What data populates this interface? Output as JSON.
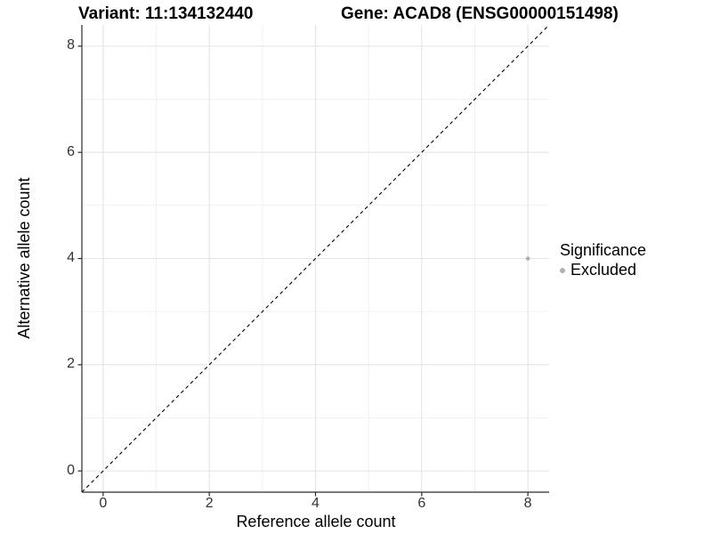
{
  "chart_data": {
    "type": "scatter",
    "title_left": "Variant: 11:134132440",
    "title_right": "Gene: ACAD8 (ENSG00000151498)",
    "xlabel": "Reference allele count",
    "ylabel": "Alternative allele count",
    "xlim": [
      -0.4,
      8.4
    ],
    "ylim": [
      -0.4,
      8.4
    ],
    "x_ticks": [
      0,
      2,
      4,
      6,
      8
    ],
    "y_ticks": [
      0,
      2,
      4,
      6,
      8
    ],
    "x_minor": [
      1,
      3,
      5,
      7
    ],
    "y_minor": [
      1,
      3,
      5,
      7
    ],
    "grid": true,
    "points": [
      {
        "x": 8,
        "y": 4,
        "series": "Excluded"
      }
    ],
    "identity_line": {
      "type": "y=x",
      "style": "dashed"
    },
    "legend": {
      "title": "Significance",
      "position": "right",
      "items": [
        {
          "label": "Excluded",
          "color": "#b0b0b0"
        }
      ]
    },
    "colors": {
      "point": "#b0b0b0",
      "grid_major": "#e4e4e4",
      "grid_minor": "#efefef",
      "axis_line": "#2b2b2b",
      "dashed_line": "#000000",
      "tick_text": "#333333",
      "background": "#ffffff"
    }
  }
}
